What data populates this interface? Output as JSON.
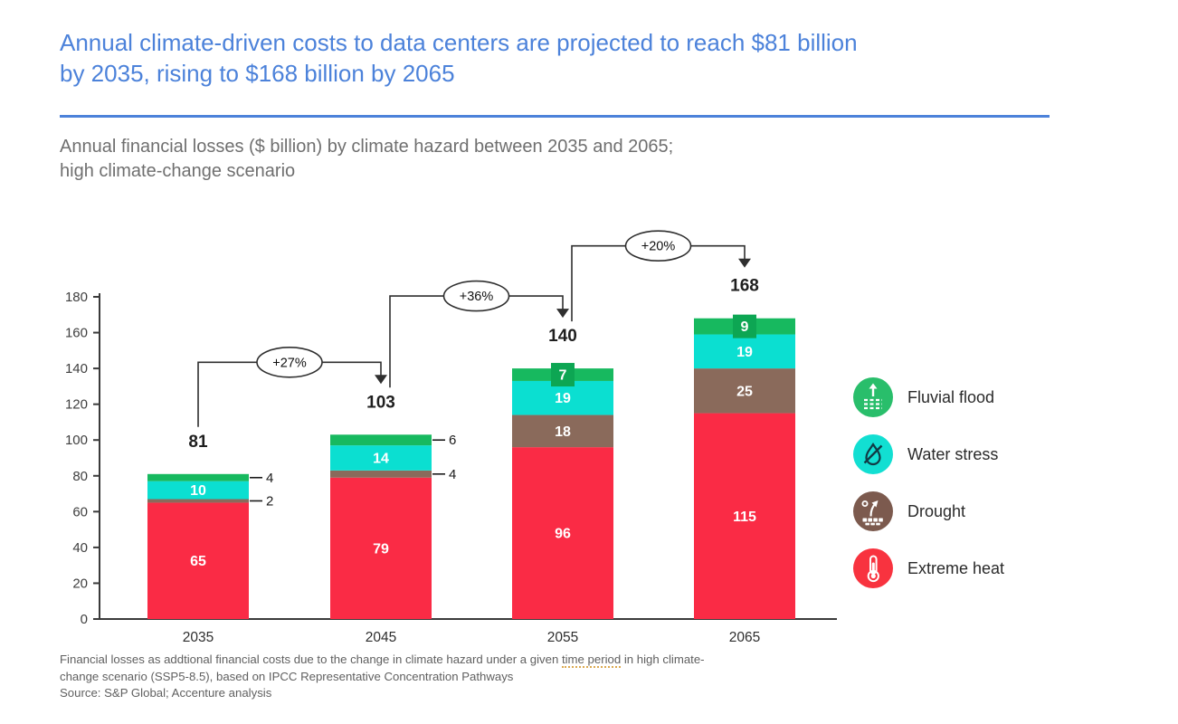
{
  "header": {
    "title_lines": [
      "Annual climate-driven costs to data centers are projected to reach $81 billion",
      "by 2035, rising to $168 billion by 2065"
    ],
    "title_color": "#4c82da"
  },
  "subtitle": {
    "lines": [
      "Annual financial losses ($ billion) by climate hazard between 2035 and 2065;",
      "high climate-change scenario"
    ]
  },
  "chart_data": {
    "type": "bar",
    "stacked": true,
    "title": "Annual financial losses ($ billion) by climate hazard between 2035 and 2065; high climate-change scenario",
    "categories": [
      "2035",
      "2045",
      "2055",
      "2065"
    ],
    "series": [
      {
        "name": "Extreme heat",
        "color": "#fa2b45",
        "values": [
          65,
          79,
          96,
          115
        ],
        "label_style": [
          "inside",
          "inside",
          "inside",
          "inside"
        ]
      },
      {
        "name": "Drought",
        "color": "#8a6a5b",
        "values": [
          2,
          4,
          18,
          25
        ],
        "label_style": [
          "callout",
          "callout",
          "inside",
          "inside"
        ]
      },
      {
        "name": "Water stress",
        "color": "#0bdfd1",
        "values": [
          10,
          14,
          19,
          19
        ],
        "label_style": [
          "inside",
          "inside",
          "inside",
          "inside"
        ]
      },
      {
        "name": "Fluvial flood",
        "color": "#17b95f",
        "tab_color": "#0da653",
        "values": [
          4,
          6,
          7,
          9
        ],
        "label_style": [
          "callout",
          "callout",
          "inside-tab",
          "inside-tab"
        ]
      }
    ],
    "totals": [
      81,
      103,
      140,
      168
    ],
    "growth_labels": [
      "+27%",
      "+36%",
      "+20%"
    ],
    "ylim": [
      0,
      180
    ],
    "yticks": [
      0,
      20,
      40,
      60,
      80,
      100,
      120,
      140,
      160,
      180
    ],
    "xlabel": "",
    "ylabel": "",
    "grid": false,
    "legend_position": "right"
  },
  "legend": {
    "items": [
      {
        "label": "Fluvial flood",
        "color": "#29be6b",
        "icon": "fluvial-flood-icon"
      },
      {
        "label": "Water stress",
        "color": "#12dfd2",
        "icon": "water-stress-icon"
      },
      {
        "label": "Drought",
        "color": "#7c5a4e",
        "icon": "drought-icon"
      },
      {
        "label": "Extreme heat",
        "color": "#f8333f",
        "icon": "extreme-heat-icon"
      }
    ]
  },
  "footnote": {
    "line1_pre": "Financial losses as addtional financial costs due to the change in climate hazard under a given ",
    "line1_underlined": "time period",
    "line1_post": " in high climate-",
    "line2": "change scenario (SSP5-8.5), based on IPCC Representative Concentration Pathways",
    "line3": "Source: S&P Global; Accenture analysis"
  }
}
